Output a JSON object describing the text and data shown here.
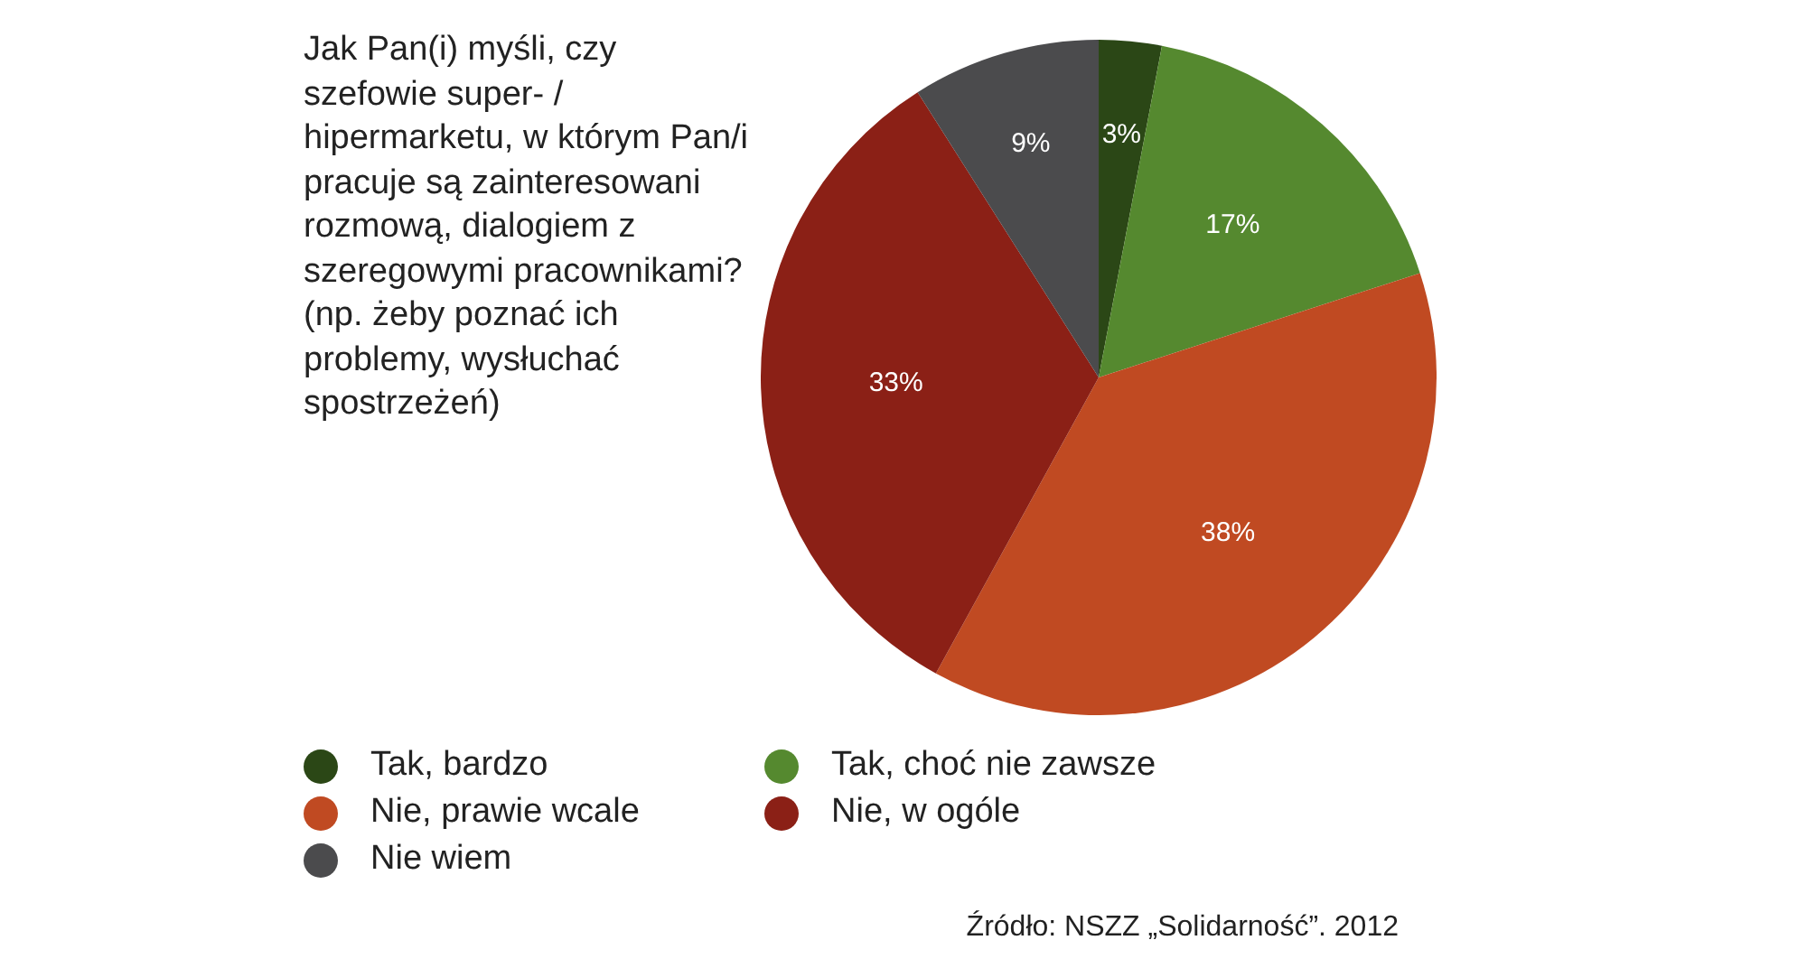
{
  "chart_data": {
    "type": "pie",
    "title": "Jak Pan(i) myśli, czy szefowie super- / hipermarketu, w którym Pan/i pracuje są zainteresowani rozmową, dialogiem z szeregowymi pracownikami? (np. żeby poznać ich problemy, wysłuchać spostrzeżeń)",
    "categories": [
      "Tak, bardzo",
      "Tak, choć nie zawsze",
      "Nie, prawie wcale",
      "Nie, w ogóle",
      "Nie wiem"
    ],
    "values": [
      3,
      17,
      38,
      33,
      9
    ],
    "colors": [
      "#2b4716",
      "#55892f",
      "#c04a22",
      "#8b2016",
      "#4b4b4d"
    ],
    "value_labels": [
      "3%",
      "17%",
      "38%",
      "33%",
      "9%"
    ],
    "legend": "bottom",
    "annotations": [
      "Źródło: NSZZ „Solidarność”. 2012"
    ]
  }
}
